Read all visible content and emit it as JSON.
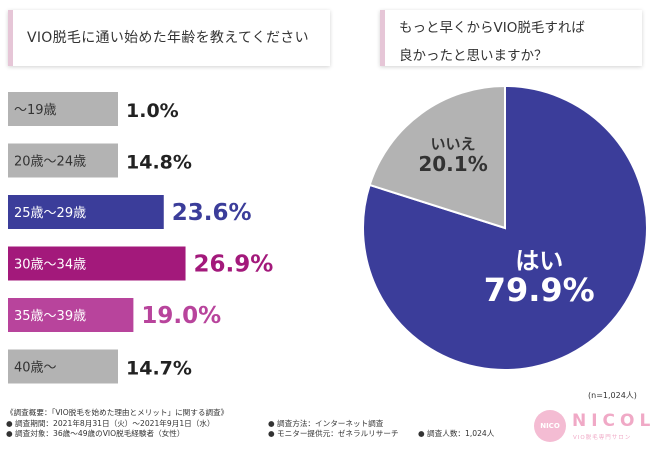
{
  "titles": {
    "left": "VIO脱毛に通い始めた年齢を教えてください",
    "right_line1": "もっと早くからVIO脱毛すれば",
    "right_line2": "良かったと思いますか？"
  },
  "chart_data": [
    {
      "type": "bar",
      "orientation": "horizontal",
      "title": "VIO脱毛に通い始めた年齢を教えてください",
      "categories": [
        "〜19歳",
        "20歳〜24歳",
        "25歳〜29歳",
        "30歳〜34歳",
        "35歳〜39歳",
        "40歳〜"
      ],
      "values": [
        1.0,
        14.8,
        23.6,
        26.9,
        19.0,
        14.7
      ],
      "value_labels": [
        "1.0%",
        "14.8%",
        "23.6%",
        "26.9%",
        "19.0%",
        "14.7%"
      ],
      "bar_colors": [
        "#b3b3b3",
        "#b3b3b3",
        "#3b3d9a",
        "#a3197b",
        "#b8449c",
        "#b3b3b3"
      ],
      "label_colors": [
        "#222222",
        "#222222",
        "#3b3d9a",
        "#a3197b",
        "#b8449c",
        "#222222"
      ],
      "unit": "%"
    },
    {
      "type": "pie",
      "title": "もっと早くからVIO脱毛すれば良かったと思いますか？",
      "categories": [
        "はい",
        "いいえ"
      ],
      "values": [
        79.9,
        20.1
      ],
      "value_labels": [
        "79.9%",
        "20.1%"
      ],
      "colors": [
        "#3b3d9a",
        "#b3b3b3"
      ],
      "sample_note": "(n=1,024人)"
    }
  ],
  "survey": {
    "overview": "《調査概要：「VIO脱毛を始めた理由とメリット」に関する調査》",
    "period": "● 調査期間：2021年8月31日（火）〜2021年9月1日（水）",
    "target": "● 調査対象：36歳〜49歳のVIO脱毛経験者（女性）",
    "method": "● 調査方法：インターネット調査",
    "provider": "● モニター提供元：ゼネラルリサーチ",
    "count": "● 調査人数：1,024人"
  },
  "logo": {
    "circle_text": "NICO",
    "word": "NICOL",
    "tagline": "VIO脱毛専門サロン"
  }
}
